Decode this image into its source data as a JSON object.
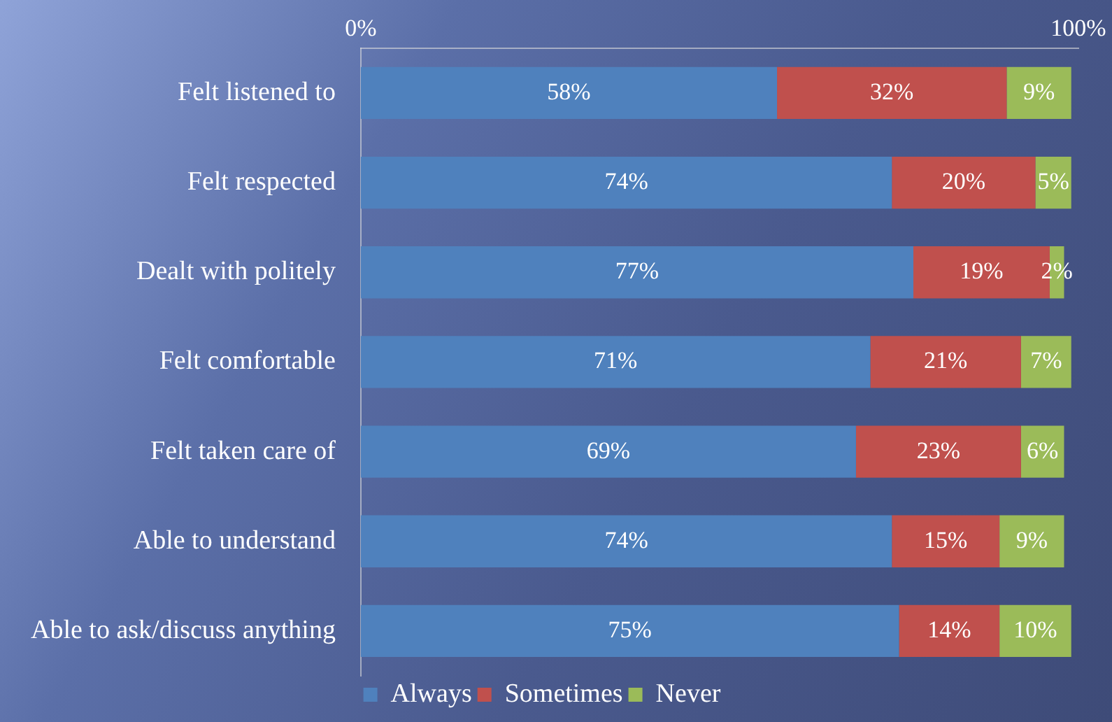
{
  "chart_data": {
    "type": "bar",
    "orientation": "horizontal",
    "stacked": true,
    "categories": [
      "Felt listened to",
      "Felt respected",
      "Dealt with politely",
      "Felt comfortable",
      "Felt taken care of",
      "Able to understand",
      "Able to ask/discuss anything"
    ],
    "series": [
      {
        "name": "Always",
        "color": "#4f81bd",
        "values": [
          58,
          74,
          77,
          71,
          69,
          74,
          75
        ],
        "value_labels": [
          "58%",
          "74%",
          "77%",
          "71%",
          "69%",
          "74%",
          "75%"
        ]
      },
      {
        "name": "Sometimes",
        "color": "#c0504d",
        "values": [
          32,
          20,
          19,
          21,
          23,
          15,
          14
        ],
        "value_labels": [
          "32%",
          "20%",
          "19%",
          "21%",
          "23%",
          "15%",
          "14%"
        ]
      },
      {
        "name": "Never",
        "color": "#9bbb59",
        "values": [
          9,
          5,
          2,
          7,
          6,
          9,
          10
        ],
        "value_labels": [
          "9%",
          "5%",
          "2%",
          "7%",
          "6%",
          "9%",
          "10%"
        ]
      }
    ],
    "xlim": [
      0,
      100
    ],
    "xticks": [
      {
        "value": 0,
        "label": "0%"
      },
      {
        "value": 100,
        "label": "100%"
      }
    ],
    "grid": false,
    "legend": "bottom"
  }
}
